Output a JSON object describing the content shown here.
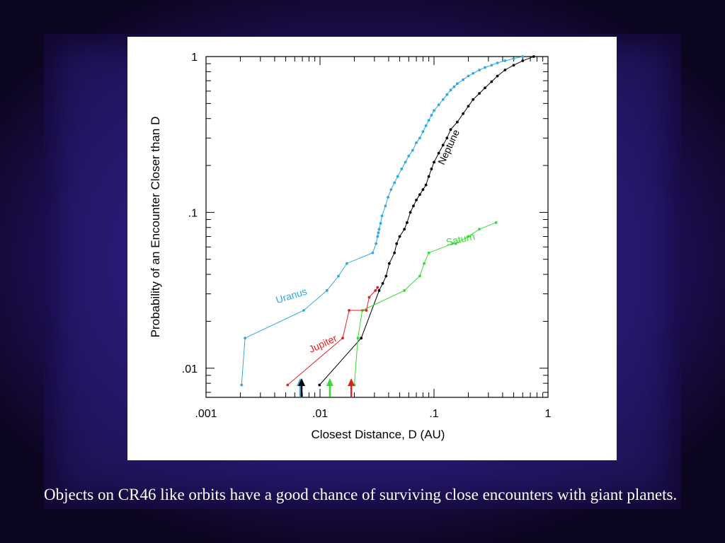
{
  "caption": "Objects on CR46 like orbits have a good chance of surviving close encounters with giant planets.",
  "colors": {
    "uranus": "#2fa8e0",
    "neptune": "#000000",
    "saturn": "#33dd33",
    "jupiter": "#dd2222",
    "axis": "#000000"
  },
  "chart_data": {
    "type": "line",
    "xlabel": "Closest Distance, D (AU)",
    "ylabel": "Probability of an Encounter Closer than D",
    "xscale": "log",
    "yscale": "log",
    "xlim": [
      0.001,
      1
    ],
    "ylim": [
      0.0065,
      1
    ],
    "xticks": [
      {
        "value": 0.001,
        "label": ".001"
      },
      {
        "value": 0.01,
        "label": ".01"
      },
      {
        "value": 0.1,
        "label": ".1"
      },
      {
        "value": 1,
        "label": "1"
      }
    ],
    "yticks": [
      {
        "value": 0.01,
        "label": ".01"
      },
      {
        "value": 0.1,
        "label": ".1"
      },
      {
        "value": 1,
        "label": "1"
      }
    ],
    "annotations": [
      {
        "text": "Uranus",
        "series": "Uranus",
        "x": 0.0042,
        "y": 0.026,
        "angle": -17
      },
      {
        "text": "Jupiter",
        "series": "Jupiter",
        "x": 0.0083,
        "y": 0.0125,
        "angle": -25
      },
      {
        "text": "Saturn",
        "series": "Saturn",
        "x": 0.13,
        "y": 0.061,
        "angle": -13
      },
      {
        "text": "Neptune",
        "series": "Neptune",
        "x": 0.122,
        "y": 0.2,
        "angle": -65
      }
    ],
    "arrows": [
      {
        "series": "Uranus",
        "x": 0.0067
      },
      {
        "series": "Neptune",
        "x": 0.0069
      },
      {
        "series": "Saturn",
        "x": 0.0122
      },
      {
        "series": "Jupiter",
        "x": 0.0188
      }
    ],
    "series": [
      {
        "name": "Uranus",
        "x": [
          0.00205,
          0.0022,
          0.0072,
          0.0115,
          0.0145,
          0.0172,
          0.029,
          0.031,
          0.032,
          0.0325,
          0.033,
          0.034,
          0.035,
          0.0375,
          0.0395,
          0.042,
          0.045,
          0.048,
          0.052,
          0.056,
          0.06,
          0.065,
          0.07,
          0.075,
          0.08,
          0.085,
          0.09,
          0.095,
          0.1,
          0.11,
          0.12,
          0.13,
          0.14,
          0.15,
          0.16,
          0.18,
          0.2,
          0.22,
          0.25,
          0.28,
          0.32,
          0.36,
          0.42,
          0.5,
          0.6
        ],
        "y": [
          0.0078,
          0.0156,
          0.0235,
          0.0315,
          0.039,
          0.047,
          0.055,
          0.063,
          0.07,
          0.074,
          0.078,
          0.085,
          0.095,
          0.11,
          0.125,
          0.14,
          0.155,
          0.17,
          0.19,
          0.21,
          0.23,
          0.25,
          0.28,
          0.3,
          0.33,
          0.36,
          0.39,
          0.42,
          0.45,
          0.49,
          0.53,
          0.57,
          0.61,
          0.64,
          0.67,
          0.71,
          0.75,
          0.78,
          0.82,
          0.85,
          0.88,
          0.91,
          0.94,
          0.97,
          1.0
        ]
      },
      {
        "name": "Neptune",
        "x": [
          0.0099,
          0.023,
          0.033,
          0.0355,
          0.038,
          0.0405,
          0.045,
          0.047,
          0.05,
          0.055,
          0.058,
          0.062,
          0.066,
          0.07,
          0.075,
          0.08,
          0.085,
          0.09,
          0.095,
          0.1,
          0.11,
          0.12,
          0.13,
          0.14,
          0.16,
          0.18,
          0.2,
          0.22,
          0.25,
          0.28,
          0.32,
          0.36,
          0.42,
          0.5,
          0.6,
          0.75
        ],
        "y": [
          0.0078,
          0.0156,
          0.0315,
          0.035,
          0.039,
          0.047,
          0.055,
          0.063,
          0.07,
          0.078,
          0.086,
          0.1,
          0.11,
          0.12,
          0.13,
          0.14,
          0.15,
          0.17,
          0.19,
          0.21,
          0.24,
          0.27,
          0.3,
          0.34,
          0.38,
          0.43,
          0.48,
          0.53,
          0.58,
          0.63,
          0.69,
          0.75,
          0.82,
          0.88,
          0.94,
          1.0
        ]
      },
      {
        "name": "Saturn",
        "x": [
          0.02,
          0.0215,
          0.0235,
          0.055,
          0.075,
          0.082,
          0.09,
          0.145,
          0.155,
          0.2,
          0.25,
          0.35
        ],
        "y": [
          0.0078,
          0.0156,
          0.0235,
          0.0315,
          0.039,
          0.047,
          0.055,
          0.063,
          0.063,
          0.07,
          0.078,
          0.086
        ]
      },
      {
        "name": "Jupiter",
        "x": [
          0.0052,
          0.0158,
          0.018,
          0.0255,
          0.027,
          0.0306,
          0.032
        ],
        "y": [
          0.0078,
          0.0156,
          0.0235,
          0.0235,
          0.0285,
          0.0315,
          0.033
        ]
      }
    ]
  }
}
